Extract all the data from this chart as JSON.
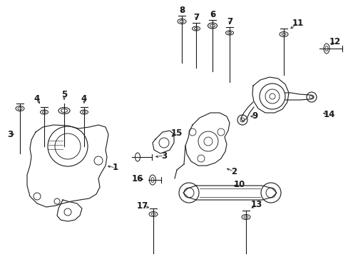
{
  "bg_color": "#ffffff",
  "line_color": "#1a1a1a",
  "fig_w": 4.89,
  "fig_h": 3.6,
  "dpi": 100,
  "font_size": 8.5
}
